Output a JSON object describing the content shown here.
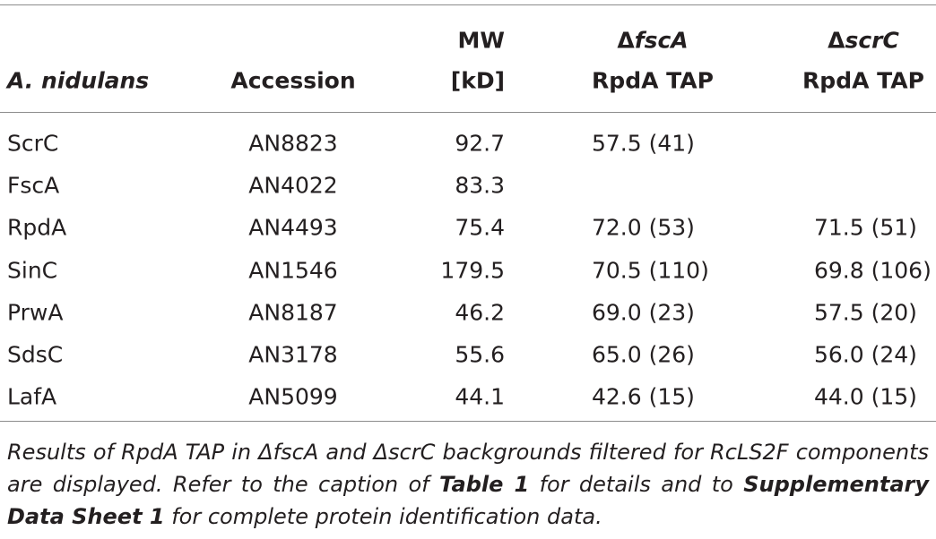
{
  "table": {
    "header": [
      {
        "lines": [
          {
            "text": "A. nidulans"
          }
        ]
      },
      {
        "lines": [
          {
            "text": "Accession"
          }
        ]
      },
      {
        "lines": [
          {
            "text": "MW"
          },
          {
            "text": "[kD]"
          }
        ]
      },
      {
        "lines": [
          {
            "delta": "Δ",
            "gene": "fscA"
          },
          {
            "text": "RpdA TAP"
          }
        ]
      },
      {
        "lines": [
          {
            "delta": "Δ",
            "gene": "scrC"
          },
          {
            "text": "RpdA TAP"
          }
        ]
      }
    ],
    "rows": [
      [
        "ScrC",
        "AN8823",
        "92.7",
        "57.5 (41)",
        null
      ],
      [
        "FscA",
        "AN4022",
        "83.3",
        null,
        null
      ],
      [
        "RpdA",
        "AN4493",
        "75.4",
        "72.0 (53)",
        "71.5 (51)"
      ],
      [
        "SinC",
        "AN1546",
        "179.5",
        "70.5 (110)",
        "69.8 (106)"
      ],
      [
        "PrwA",
        "AN8187",
        "46.2",
        "69.0 (23)",
        "57.5 (20)"
      ],
      [
        "SdsC",
        "AN3178",
        "55.6",
        "65.0 (26)",
        "56.0 (24)"
      ],
      [
        "LafA",
        "AN5099",
        "44.1",
        "42.6 (15)",
        "44.0 (15)"
      ]
    ]
  },
  "caption": [
    {
      "text": "Results of RpdA TAP in ΔfscA and ΔscrC backgrounds filtered for RcLS2F components are displayed. Refer to the caption of "
    },
    {
      "text": "Table 1",
      "bold": true
    },
    {
      "text": " for details and to "
    },
    {
      "text": "Supplementary Data Sheet 1",
      "bold": true
    },
    {
      "text": " for complete protein identification data."
    }
  ]
}
